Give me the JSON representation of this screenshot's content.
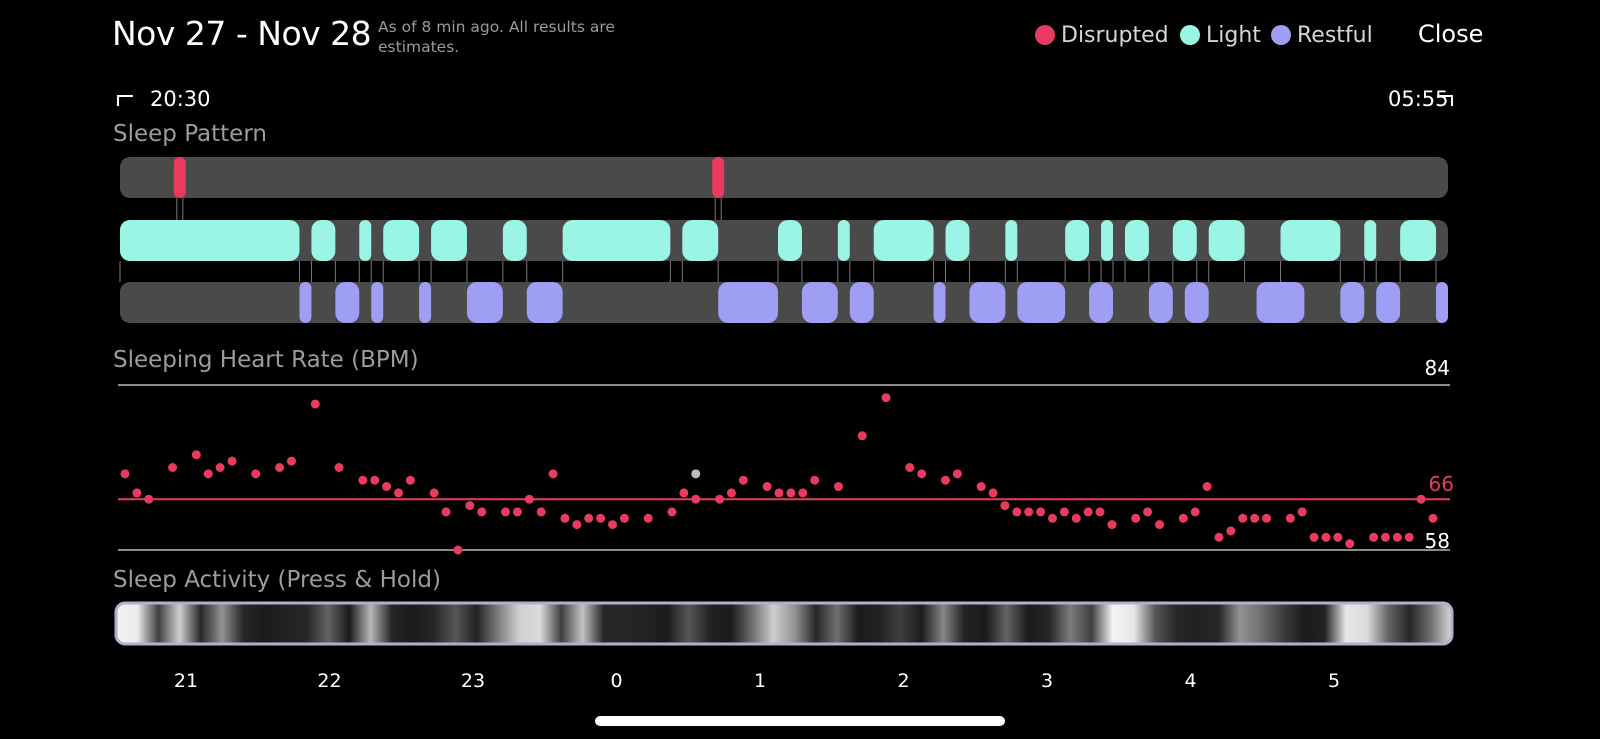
{
  "header": {
    "title": "Nov 27 - Nov 28",
    "subtitle": "As of 8 min ago. All results are estimates.",
    "close_label": "Close"
  },
  "legend": [
    {
      "label": "Disrupted",
      "color": "#E93A5F"
    },
    {
      "label": "Light",
      "color": "#9BF5E7"
    },
    {
      "label": "Restful",
      "color": "#9E9EF4"
    }
  ],
  "time_range": {
    "start": "20:30",
    "end": "05:55"
  },
  "sleep_pattern": {
    "label": "Sleep Pattern",
    "track_color": "#4A4A4A",
    "disrupted": [
      [
        0.5,
        0.5
      ],
      [
        5.0,
        5.0
      ]
    ],
    "light": [
      [
        0.0,
        1.5
      ],
      [
        1.6,
        1.8
      ],
      [
        2.0,
        2.1
      ],
      [
        2.2,
        2.5
      ],
      [
        2.6,
        2.9
      ],
      [
        3.2,
        3.4
      ],
      [
        3.7,
        4.6
      ],
      [
        4.7,
        5.0
      ],
      [
        5.5,
        5.7
      ],
      [
        6.0,
        6.1
      ],
      [
        6.3,
        6.8
      ],
      [
        6.9,
        7.1
      ],
      [
        7.4,
        7.5
      ],
      [
        7.9,
        8.1
      ],
      [
        8.2,
        8.3
      ],
      [
        8.4,
        8.6
      ],
      [
        8.8,
        9.0
      ],
      [
        9.1,
        9.4
      ],
      [
        9.7,
        10.2
      ],
      [
        10.4,
        10.5
      ],
      [
        10.7,
        11.0
      ]
    ],
    "restful": [
      [
        1.5,
        1.6
      ],
      [
        1.8,
        2.0
      ],
      [
        2.1,
        2.2
      ],
      [
        2.5,
        2.6
      ],
      [
        2.9,
        3.2
      ],
      [
        3.4,
        3.7
      ],
      [
        5.0,
        5.5
      ],
      [
        5.7,
        6.0
      ],
      [
        6.1,
        6.3
      ],
      [
        6.8,
        6.9
      ],
      [
        7.1,
        7.4
      ],
      [
        7.5,
        7.9
      ],
      [
        8.1,
        8.3
      ],
      [
        8.6,
        8.8
      ],
      [
        8.9,
        9.1
      ],
      [
        9.5,
        9.9
      ],
      [
        10.2,
        10.4
      ],
      [
        10.5,
        10.7
      ],
      [
        11.0,
        11.1
      ]
    ]
  },
  "heart_rate": {
    "label": "Sleeping Heart Rate (BPM)",
    "max": 84,
    "avg": 66,
    "min": 58,
    "avg_color": "#E93A5F",
    "point_color": "#E93A5F",
    "points": [
      [
        0.0,
        70
      ],
      [
        0.1,
        67
      ],
      [
        0.2,
        66
      ],
      [
        0.4,
        71
      ],
      [
        0.6,
        73
      ],
      [
        0.7,
        70
      ],
      [
        0.8,
        71
      ],
      [
        0.9,
        72
      ],
      [
        1.1,
        70
      ],
      [
        1.3,
        71
      ],
      [
        1.4,
        72
      ],
      [
        1.6,
        81
      ],
      [
        1.8,
        71
      ],
      [
        2.0,
        69
      ],
      [
        2.1,
        69
      ],
      [
        2.2,
        68
      ],
      [
        2.3,
        67
      ],
      [
        2.4,
        69
      ],
      [
        2.6,
        67
      ],
      [
        2.7,
        64
      ],
      [
        2.8,
        58
      ],
      [
        2.9,
        65
      ],
      [
        3.0,
        64
      ],
      [
        3.2,
        64
      ],
      [
        3.3,
        64
      ],
      [
        3.4,
        66
      ],
      [
        3.5,
        64
      ],
      [
        3.6,
        70
      ],
      [
        3.7,
        63
      ],
      [
        3.8,
        62
      ],
      [
        3.9,
        63
      ],
      [
        4.0,
        63
      ],
      [
        4.1,
        62
      ],
      [
        4.2,
        63
      ],
      [
        4.4,
        63
      ],
      [
        4.6,
        64
      ],
      [
        4.7,
        67
      ],
      [
        4.8,
        66
      ],
      [
        5.0,
        66
      ],
      [
        5.1,
        67
      ],
      [
        5.2,
        69
      ],
      [
        5.4,
        68
      ],
      [
        5.5,
        67
      ],
      [
        5.6,
        67
      ],
      [
        5.7,
        67
      ],
      [
        5.8,
        69
      ],
      [
        6.0,
        68
      ],
      [
        6.2,
        76
      ],
      [
        6.4,
        82
      ],
      [
        6.6,
        71
      ],
      [
        6.7,
        70
      ],
      [
        6.9,
        69
      ],
      [
        7.0,
        70
      ],
      [
        7.2,
        68
      ],
      [
        7.3,
        67
      ],
      [
        7.4,
        65
      ],
      [
        7.5,
        64
      ],
      [
        7.6,
        64
      ],
      [
        7.7,
        64
      ],
      [
        7.8,
        63
      ],
      [
        7.9,
        64
      ],
      [
        8.0,
        63
      ],
      [
        8.1,
        64
      ],
      [
        8.2,
        64
      ],
      [
        8.3,
        62
      ],
      [
        8.5,
        63
      ],
      [
        8.6,
        64
      ],
      [
        8.7,
        62
      ],
      [
        8.9,
        63
      ],
      [
        9.0,
        64
      ],
      [
        9.1,
        68
      ],
      [
        9.2,
        60
      ],
      [
        9.3,
        61
      ],
      [
        9.4,
        63
      ],
      [
        9.5,
        63
      ],
      [
        9.6,
        63
      ],
      [
        9.8,
        63
      ],
      [
        9.9,
        64
      ],
      [
        10.0,
        60
      ],
      [
        10.1,
        60
      ],
      [
        10.2,
        60
      ],
      [
        10.3,
        59
      ],
      [
        10.5,
        60
      ],
      [
        10.6,
        60
      ],
      [
        10.7,
        60
      ],
      [
        10.8,
        60
      ],
      [
        10.9,
        66
      ],
      [
        11.0,
        63
      ]
    ],
    "marker_point": [
      4.8,
      70
    ]
  },
  "sleep_activity": {
    "label": "Sleep Activity (Press & Hold)",
    "intensity": [
      0.95,
      0.92,
      0.2,
      0.8,
      0.1,
      0.55,
      0.1,
      0.05,
      0.08,
      0.1,
      0.35,
      0.05,
      0.7,
      0.1,
      0.05,
      0.1,
      0.3,
      0.08,
      0.45,
      0.8,
      0.85,
      0.2,
      0.75,
      0.1,
      0.1,
      0.08,
      0.05,
      0.3,
      0.08,
      0.05,
      0.4,
      0.8,
      0.55,
      0.1,
      0.4,
      0.05,
      0.08,
      0.2,
      0.05,
      0.5,
      0.08,
      0.05,
      0.35,
      0.05,
      0.1,
      0.45,
      0.2,
      0.95,
      0.9,
      0.3,
      0.1,
      0.08,
      0.1,
      0.55,
      0.4,
      0.2,
      0.05,
      0.08,
      0.9,
      0.85,
      0.35,
      0.1,
      0.4,
      0.85
    ]
  },
  "x_axis": {
    "ticks": [
      "21",
      "22",
      "23",
      "0",
      "1",
      "2",
      "3",
      "4",
      "5"
    ]
  }
}
